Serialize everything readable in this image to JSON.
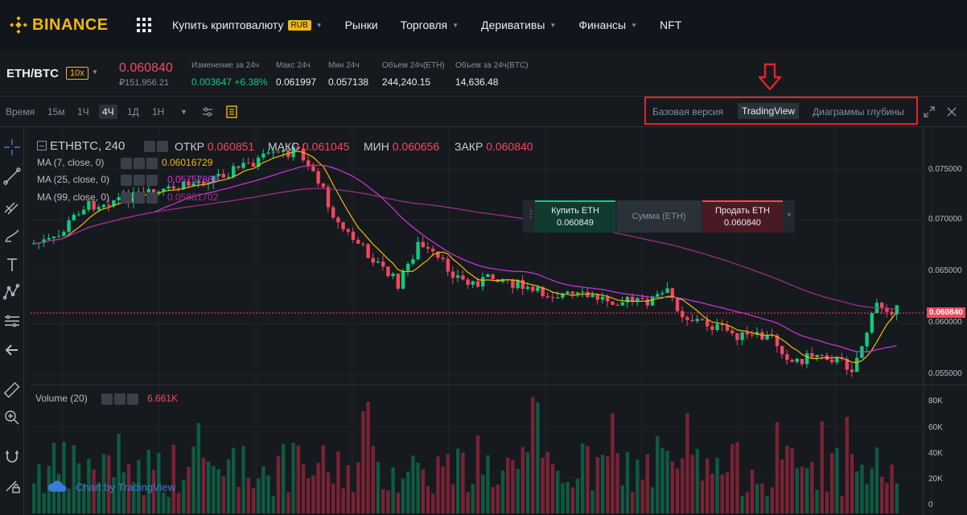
{
  "brand": {
    "name": "BINANCE",
    "color": "#f0b90b"
  },
  "nav": {
    "items": [
      {
        "label": "Купить криптовалюту",
        "badge": "RUB",
        "has_caret": true
      },
      {
        "label": "Рынки",
        "has_caret": false
      },
      {
        "label": "Торговля",
        "has_caret": true
      },
      {
        "label": "Деривативы",
        "has_caret": true
      },
      {
        "label": "Финансы",
        "has_caret": true
      },
      {
        "label": "NFT",
        "has_caret": false
      }
    ]
  },
  "ticker": {
    "pair": "ETH/BTC",
    "leverage": "10x",
    "last_price": "0.060840",
    "fiat_price": "₽151,956.21",
    "stats": [
      {
        "label": "Изменение за 24ч",
        "value": "0.003647 +6.38%",
        "color": "green"
      },
      {
        "label": "Макс 24ч",
        "value": "0.061997"
      },
      {
        "label": "Мин 24ч",
        "value": "0.057138"
      },
      {
        "label": "Объем 24ч(ETH)",
        "value": "244,240.15"
      },
      {
        "label": "Объем за 24ч(BTC)",
        "value": "14,636.48"
      }
    ]
  },
  "toolbar": {
    "intervals": [
      "Время",
      "15м",
      "1Ч",
      "4Ч",
      "1Д",
      "1Н"
    ],
    "active_interval": "4Ч",
    "views": [
      "Базовая версия",
      "TradingView",
      "Диаграммы глубины"
    ],
    "active_view": "TradingView"
  },
  "legend": {
    "symbol": "ETHBTC, 240",
    "open_label": "ОТКР",
    "open": "0.060851",
    "high_label": "МАКС",
    "high": "0.061045",
    "low_label": "МИН",
    "low": "0.060656",
    "close_label": "ЗАКР",
    "close": "0.060840",
    "ma": [
      {
        "label": "MA (7, close, 0)",
        "value": "0.06016729",
        "color": "#f0b90b"
      },
      {
        "label": "MA (25, close, 0)",
        "value": "0.05757868",
        "color": "#d433e0"
      },
      {
        "label": "MA (99, close, 0)",
        "value": "0.05861702",
        "color": "#a32f8f"
      }
    ]
  },
  "order_widget": {
    "buy_label": "Купить ETH",
    "buy_price": "0.060849",
    "amount_label": "Сумма (ETH)",
    "sell_label": "Продать ETH",
    "sell_price": "0.060840"
  },
  "price_axis": {
    "labels": [
      "0.075000",
      "0.070000",
      "0.065000",
      "0.060000",
      "0.055000"
    ],
    "current": "0.060840"
  },
  "volume": {
    "label": "Volume (20)",
    "value": "6.661K",
    "axis": [
      "80K",
      "60K",
      "40K",
      "20K",
      "0"
    ]
  },
  "watermark": "Chart by TradingView",
  "colors": {
    "up": "#0ecb81",
    "down": "#f6465d",
    "bg": "#161a1e",
    "highlight": "#e8222b"
  }
}
